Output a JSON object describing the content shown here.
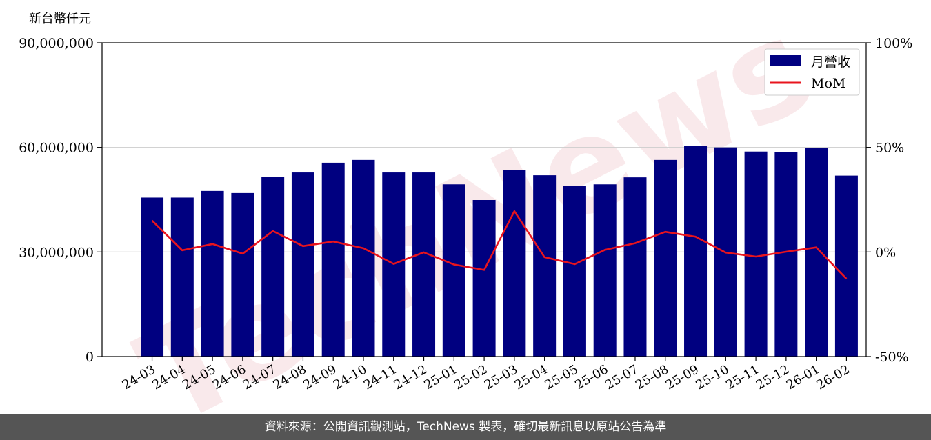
{
  "y_unit_label": "新台幣仟元",
  "watermark": "TechNews",
  "footer": "資料來源：公開資訊觀測站，TechNews 製表，確切最新訊息以原站公告為準",
  "colors": {
    "bar": "#000080",
    "line": "#e8141e",
    "grid": "#cccccc",
    "footer_bg": "#555555"
  },
  "chart_data": {
    "type": "bar",
    "title": "",
    "categories": [
      "24-03",
      "24-04",
      "24-05",
      "24-06",
      "24-07",
      "24-08",
      "24-09",
      "24-10",
      "24-11",
      "24-12",
      "25-01",
      "25-02",
      "25-03",
      "25-04",
      "25-05",
      "25-06",
      "25-07",
      "25-08",
      "25-09",
      "25-10",
      "25-11",
      "25-12",
      "26-01",
      "26-02"
    ],
    "series": [
      {
        "name": "月營收",
        "type": "bar",
        "axis": "left",
        "values": [
          45600000,
          45600000,
          47500000,
          46900000,
          51600000,
          52800000,
          55600000,
          56400000,
          52800000,
          52800000,
          49400000,
          44900000,
          53500000,
          52000000,
          48900000,
          49400000,
          51400000,
          56400000,
          60500000,
          60000000,
          58800000,
          58700000,
          59900000,
          51900000
        ]
      },
      {
        "name": "MoM",
        "type": "line",
        "axis": "right",
        "values": [
          15,
          0.8,
          3.8,
          -0.8,
          10,
          2.8,
          5,
          1.8,
          -5.7,
          -0.2,
          -6,
          -8.6,
          19.5,
          -2.5,
          -5.8,
          1,
          4.2,
          9.6,
          7.3,
          -0.3,
          -2.2,
          0.1,
          2.2,
          -12.8
        ]
      }
    ],
    "y_left": {
      "min": 0,
      "max": 90000000,
      "ticks": [
        0,
        30000000,
        60000000,
        90000000
      ],
      "tick_labels": [
        "0",
        "30,000,000",
        "60,000,000",
        "90,000,000"
      ]
    },
    "y_right": {
      "min": -50,
      "max": 100,
      "ticks": [
        -50,
        0,
        50,
        100
      ],
      "tick_labels": [
        "-50%",
        "0%",
        "50%",
        "100%"
      ]
    },
    "grid": "horizontal",
    "legend": {
      "position": "top-right",
      "entries": [
        "月營收",
        "MoM"
      ]
    }
  }
}
